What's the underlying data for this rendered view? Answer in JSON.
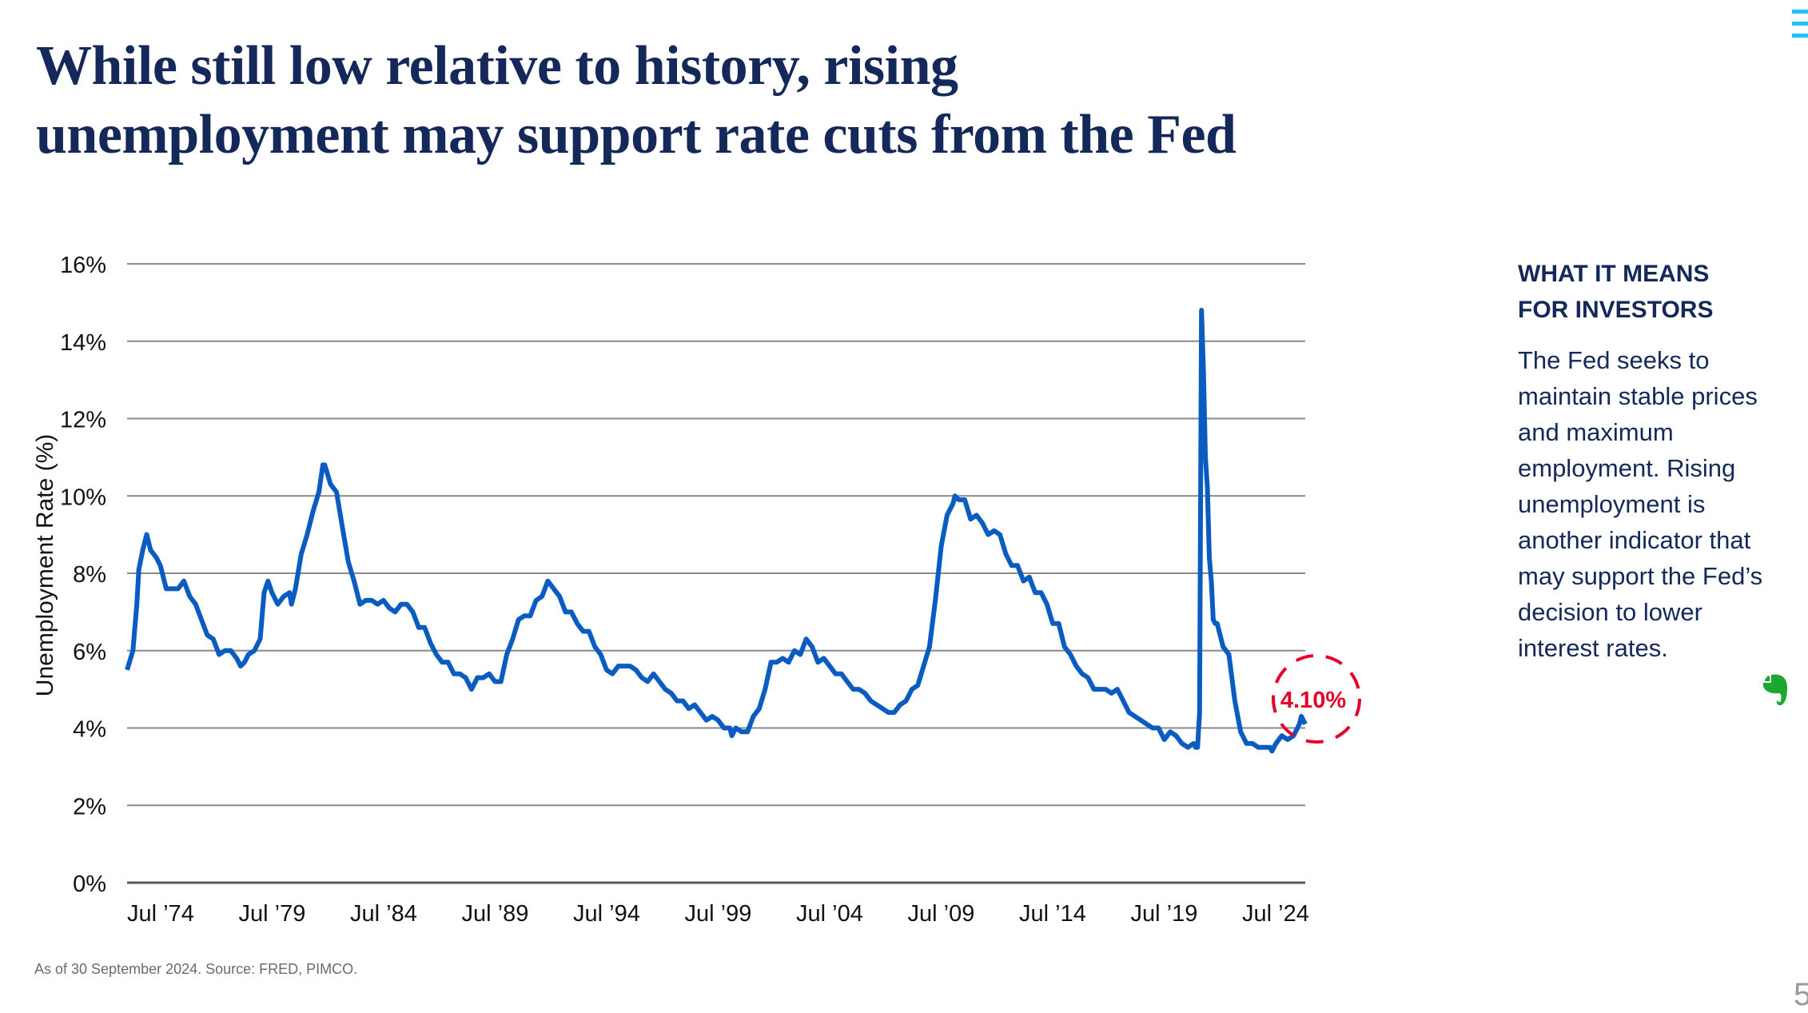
{
  "title": {
    "line1": "While still low relative to history, rising",
    "line2": "unemployment may support rate cuts from the Fed"
  },
  "sidebar": {
    "heading_line1": "WHAT IT MEANS",
    "heading_line2": "FOR INVESTORS",
    "body": "The Fed seeks to maintain stable prices and maximum employment. Rising unemployment is another indicator that may support the Fed’s decision to lower interest rates."
  },
  "footnote": "As of 30 September 2024. Source: FRED, PIMCO.",
  "page_number": "5",
  "icons": {
    "menu": "hamburger-menu-icon",
    "evernote": "evernote-elephant-icon"
  },
  "colors": {
    "title": "#14285a",
    "line": "#0a5cc2",
    "callout": "#e4002b",
    "menu": "#1ec3ef",
    "evernote": "#1aa830"
  },
  "chart_data": {
    "type": "line",
    "title": "",
    "xlabel": "",
    "ylabel": "Unemployment Rate (%)",
    "ylim": [
      0,
      16
    ],
    "yticks": [
      "0%",
      "2%",
      "4%",
      "6%",
      "8%",
      "10%",
      "12%",
      "14%",
      "16%"
    ],
    "xticks": [
      "Jul ’74",
      "Jul ’79",
      "Jul ’84",
      "Jul ’89",
      "Jul ’94",
      "Jul ’99",
      "Jul ’04",
      "Jul ’09",
      "Jul ’14",
      "Jul ’19",
      "Jul ’24"
    ],
    "grid": "horizontal",
    "annotation": "4.10%",
    "series": [
      {
        "x": [
          "1974-07",
          "1974-10",
          "1974-12",
          "1975-01",
          "1975-03",
          "1975-05",
          "1975-07",
          "1975-10",
          "1975-12",
          "1976-03",
          "1976-06",
          "1976-09",
          "1976-12",
          "1977-03",
          "1977-06",
          "1977-09",
          "1977-12",
          "1978-03",
          "1978-06",
          "1978-09",
          "1978-12",
          "1979-03",
          "1979-05",
          "1979-07",
          "1979-09",
          "1979-12",
          "1980-03",
          "1980-05",
          "1980-07",
          "1980-09",
          "1980-12",
          "1981-03",
          "1981-06",
          "1981-07",
          "1981-09",
          "1981-12",
          "1982-03",
          "1982-06",
          "1982-09",
          "1982-11",
          "1982-12",
          "1983-03",
          "1983-06",
          "1983-09",
          "1983-12",
          "1984-03",
          "1984-06",
          "1984-09",
          "1984-12",
          "1985-03",
          "1985-06",
          "1985-09",
          "1985-12",
          "1986-03",
          "1986-06",
          "1986-09",
          "1986-12",
          "1987-03",
          "1987-06",
          "1987-09",
          "1987-12",
          "1988-03",
          "1988-06",
          "1988-09",
          "1988-12",
          "1989-03",
          "1989-06",
          "1989-09",
          "1989-12",
          "1990-03",
          "1990-06",
          "1990-09",
          "1990-12",
          "1991-03",
          "1991-06",
          "1991-09",
          "1991-12",
          "1992-03",
          "1992-06",
          "1992-09",
          "1992-12",
          "1993-03",
          "1993-06",
          "1993-09",
          "1993-12",
          "1994-03",
          "1994-06",
          "1994-09",
          "1994-12",
          "1995-03",
          "1995-06",
          "1995-09",
          "1995-12",
          "1996-03",
          "1996-06",
          "1996-09",
          "1996-12",
          "1997-03",
          "1997-06",
          "1997-09",
          "1997-12",
          "1998-03",
          "1998-06",
          "1998-09",
          "1998-12",
          "1999-03",
          "1999-06",
          "1999-09",
          "1999-12",
          "2000-03",
          "2000-04",
          "2000-06",
          "2000-09",
          "2000-12",
          "2001-03",
          "2001-06",
          "2001-09",
          "2001-12",
          "2002-03",
          "2002-06",
          "2002-09",
          "2002-12",
          "2003-03",
          "2003-06",
          "2003-09",
          "2003-12",
          "2004-03",
          "2004-06",
          "2004-09",
          "2004-12",
          "2005-03",
          "2005-06",
          "2005-09",
          "2005-12",
          "2006-03",
          "2006-06",
          "2006-09",
          "2006-12",
          "2007-03",
          "2007-06",
          "2007-09",
          "2007-12",
          "2008-03",
          "2008-06",
          "2008-09",
          "2008-12",
          "2009-03",
          "2009-06",
          "2009-09",
          "2009-10",
          "2009-12",
          "2010-03",
          "2010-06",
          "2010-09",
          "2010-12",
          "2011-03",
          "2011-06",
          "2011-09",
          "2011-12",
          "2012-03",
          "2012-06",
          "2012-09",
          "2012-12",
          "2013-03",
          "2013-06",
          "2013-09",
          "2013-12",
          "2014-03",
          "2014-06",
          "2014-09",
          "2014-12",
          "2015-03",
          "2015-06",
          "2015-09",
          "2015-12",
          "2016-03",
          "2016-06",
          "2016-09",
          "2016-12",
          "2017-03",
          "2017-06",
          "2017-09",
          "2017-12",
          "2018-03",
          "2018-06",
          "2018-09",
          "2018-12",
          "2019-03",
          "2019-06",
          "2019-09",
          "2019-12",
          "2020-01",
          "2020-02",
          "2020-03",
          "2020-04",
          "2020-05",
          "2020-06",
          "2020-07",
          "2020-08",
          "2020-09",
          "2020-10",
          "2020-11",
          "2020-12",
          "2021-03",
          "2021-06",
          "2021-09",
          "2021-12",
          "2022-03",
          "2022-06",
          "2022-09",
          "2022-12",
          "2023-03",
          "2023-04",
          "2023-06",
          "2023-09",
          "2023-12",
          "2024-03",
          "2024-06",
          "2024-07",
          "2024-08",
          "2024-09"
        ],
        "y": [
          5.5,
          6.0,
          7.2,
          8.1,
          8.6,
          9.0,
          8.6,
          8.4,
          8.2,
          7.6,
          7.6,
          7.6,
          7.8,
          7.4,
          7.2,
          6.8,
          6.4,
          6.3,
          5.9,
          6.0,
          6.0,
          5.8,
          5.6,
          5.7,
          5.9,
          6.0,
          6.3,
          7.5,
          7.8,
          7.5,
          7.2,
          7.4,
          7.5,
          7.2,
          7.6,
          8.5,
          9.0,
          9.6,
          10.1,
          10.8,
          10.8,
          10.3,
          10.1,
          9.2,
          8.3,
          7.8,
          7.2,
          7.3,
          7.3,
          7.2,
          7.3,
          7.1,
          7.0,
          7.2,
          7.2,
          7.0,
          6.6,
          6.6,
          6.2,
          5.9,
          5.7,
          5.7,
          5.4,
          5.4,
          5.3,
          5.0,
          5.3,
          5.3,
          5.4,
          5.2,
          5.2,
          5.9,
          6.3,
          6.8,
          6.9,
          6.9,
          7.3,
          7.4,
          7.8,
          7.6,
          7.4,
          7.0,
          7.0,
          6.7,
          6.5,
          6.5,
          6.1,
          5.9,
          5.5,
          5.4,
          5.6,
          5.6,
          5.6,
          5.5,
          5.3,
          5.2,
          5.4,
          5.2,
          5.0,
          4.9,
          4.7,
          4.7,
          4.5,
          4.6,
          4.4,
          4.2,
          4.3,
          4.2,
          4.0,
          4.0,
          3.8,
          4.0,
          3.9,
          3.9,
          4.3,
          4.5,
          5.0,
          5.7,
          5.7,
          5.8,
          5.7,
          6.0,
          5.9,
          6.3,
          6.1,
          5.7,
          5.8,
          5.6,
          5.4,
          5.4,
          5.2,
          5.0,
          5.0,
          4.9,
          4.7,
          4.6,
          4.5,
          4.4,
          4.4,
          4.6,
          4.7,
          5.0,
          5.1,
          5.6,
          6.1,
          7.3,
          8.7,
          9.5,
          9.8,
          10.0,
          9.9,
          9.9,
          9.4,
          9.5,
          9.3,
          9.0,
          9.1,
          9.0,
          8.5,
          8.2,
          8.2,
          7.8,
          7.9,
          7.5,
          7.5,
          7.2,
          6.7,
          6.7,
          6.1,
          5.9,
          5.6,
          5.4,
          5.3,
          5.0,
          5.0,
          5.0,
          4.9,
          5.0,
          4.7,
          4.4,
          4.3,
          4.2,
          4.1,
          4.0,
          4.0,
          3.7,
          3.9,
          3.8,
          3.6,
          3.5,
          3.6,
          3.5,
          3.5,
          4.4,
          14.8,
          13.2,
          11.0,
          10.2,
          8.4,
          7.8,
          6.8,
          6.7,
          6.7,
          6.1,
          5.9,
          4.7,
          3.9,
          3.6,
          3.6,
          3.5,
          3.5,
          3.5,
          3.4,
          3.6,
          3.8,
          3.7,
          3.8,
          4.1,
          4.3,
          4.2,
          4.1
        ]
      }
    ]
  }
}
